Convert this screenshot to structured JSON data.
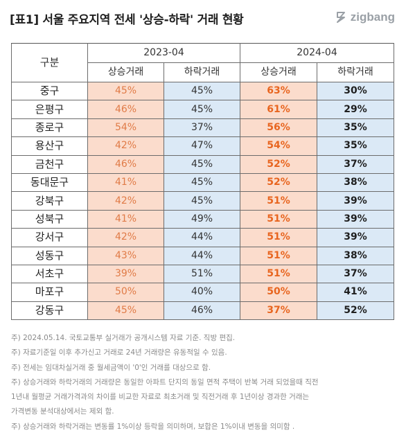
{
  "title": "[표1] 서울 주요지역 전세 '상승-하락' 거래 현황",
  "logo": {
    "text": "zigbang",
    "icon": "zigbang-logo-icon",
    "color": "#9aa0a6"
  },
  "table": {
    "header_label": "구분",
    "periods": [
      "2023-04",
      "2024-04"
    ],
    "subheaders": [
      "상승거래",
      "하락거래",
      "상승거래",
      "하락거래"
    ],
    "rows": [
      {
        "district": "중구",
        "up_2023": "45%",
        "down_2023": "45%",
        "up_2024": "63%",
        "down_2024": "30%"
      },
      {
        "district": "은평구",
        "up_2023": "46%",
        "down_2023": "45%",
        "up_2024": "61%",
        "down_2024": "29%"
      },
      {
        "district": "종로구",
        "up_2023": "54%",
        "down_2023": "37%",
        "up_2024": "56%",
        "down_2024": "35%"
      },
      {
        "district": "용산구",
        "up_2023": "42%",
        "down_2023": "47%",
        "up_2024": "54%",
        "down_2024": "35%"
      },
      {
        "district": "금천구",
        "up_2023": "46%",
        "down_2023": "45%",
        "up_2024": "52%",
        "down_2024": "37%"
      },
      {
        "district": "동대문구",
        "up_2023": "41%",
        "down_2023": "45%",
        "up_2024": "52%",
        "down_2024": "38%"
      },
      {
        "district": "강북구",
        "up_2023": "42%",
        "down_2023": "45%",
        "up_2024": "51%",
        "down_2024": "39%"
      },
      {
        "district": "성북구",
        "up_2023": "41%",
        "down_2023": "49%",
        "up_2024": "51%",
        "down_2024": "39%"
      },
      {
        "district": "강서구",
        "up_2023": "42%",
        "down_2023": "44%",
        "up_2024": "51%",
        "down_2024": "39%"
      },
      {
        "district": "성동구",
        "up_2023": "43%",
        "down_2023": "44%",
        "up_2024": "51%",
        "down_2024": "38%"
      },
      {
        "district": "서초구",
        "up_2023": "39%",
        "down_2023": "51%",
        "up_2024": "51%",
        "down_2024": "37%"
      },
      {
        "district": "마포구",
        "up_2023": "50%",
        "down_2023": "40%",
        "up_2024": "50%",
        "down_2024": "41%"
      },
      {
        "district": "강동구",
        "up_2023": "45%",
        "down_2023": "46%",
        "up_2024": "37%",
        "down_2024": "52%"
      }
    ],
    "colors": {
      "up_fill": "#fbdccc",
      "down_fill": "#dbe9f6",
      "up_text": "#e8651f"
    }
  },
  "notes": [
    "주) 2024.05.14. 국토교통부 실거래가 공개시스템 자료 기준. 직방 편집.",
    "주) 자료기준일 이후 추가신고 거래로 24년 거래량은 유동적일 수 있음.",
    "주) 전세는 임대차실거래 중 월세금액이 '0'인 거래를 대상으로 함.",
    "주) 상승거래와 하락거래의 거래량은 동일한 아파트 단지의 동일 면적 주택이 반복 거래 되었을때 직전",
    "1년내 월평균 거래가격과의 차이를 비교한 자료로 최초거래 및 직전거래 후 1년이상 경과한 거래는",
    "가격변동 분석대상에서는 제외 함.",
    "주) 상승거래와 하락거래는 변동률 1%이상 등락을 의미하며, 보합은 1%이내 변동을 의미함 ."
  ]
}
